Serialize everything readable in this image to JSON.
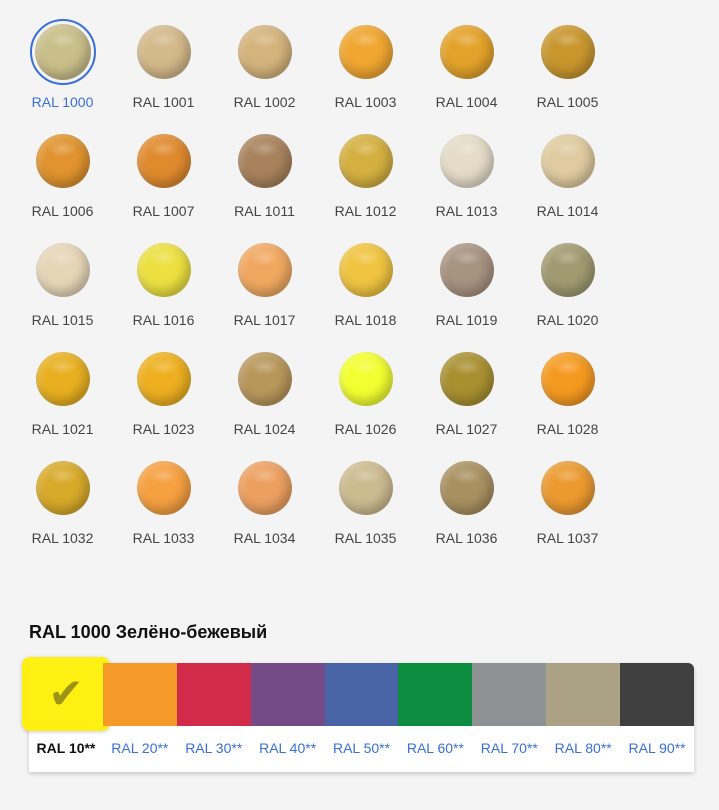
{
  "colors": [
    {
      "label": "RAL 1000",
      "color": "#c9bf8a",
      "selected": true
    },
    {
      "label": "RAL 1001",
      "color": "#d4b98a"
    },
    {
      "label": "RAL 1002",
      "color": "#d4b47c"
    },
    {
      "label": "RAL 1003",
      "color": "#f0a630"
    },
    {
      "label": "RAL 1004",
      "color": "#e3a22a"
    },
    {
      "label": "RAL 1005",
      "color": "#c9962e"
    },
    {
      "label": "RAL 1006",
      "color": "#e0932e"
    },
    {
      "label": "RAL 1007",
      "color": "#e08a2e"
    },
    {
      "label": "RAL 1011",
      "color": "#a8825c"
    },
    {
      "label": "RAL 1012",
      "color": "#d4b040"
    },
    {
      "label": "RAL 1013",
      "color": "#e4dcc8"
    },
    {
      "label": "RAL 1014",
      "color": "#e0cba0"
    },
    {
      "label": "RAL 1015",
      "color": "#e6d6b8"
    },
    {
      "label": "RAL 1016",
      "color": "#ece040"
    },
    {
      "label": "RAL 1017",
      "color": "#f0a860"
    },
    {
      "label": "RAL 1018",
      "color": "#f0c440"
    },
    {
      "label": "RAL 1019",
      "color": "#a89280"
    },
    {
      "label": "RAL 1020",
      "color": "#a09a70"
    },
    {
      "label": "RAL 1021",
      "color": "#e8b020"
    },
    {
      "label": "RAL 1023",
      "color": "#eeb020"
    },
    {
      "label": "RAL 1024",
      "color": "#b8975a"
    },
    {
      "label": "RAL 1026",
      "color": "#f2ff30"
    },
    {
      "label": "RAL 1027",
      "color": "#a89030"
    },
    {
      "label": "RAL 1028",
      "color": "#f59a20"
    },
    {
      "label": "RAL 1032",
      "color": "#d8aa2a"
    },
    {
      "label": "RAL 1033",
      "color": "#f6a040"
    },
    {
      "label": "RAL 1034",
      "color": "#eca060"
    },
    {
      "label": "RAL 1035",
      "color": "#cdbb90"
    },
    {
      "label": "RAL 1036",
      "color": "#a89060"
    },
    {
      "label": "RAL 1037",
      "color": "#eb9a30"
    }
  ],
  "selected_title": "RAL 1000 Зелёно-бежевый",
  "palette": [
    {
      "label": "RAL 10**",
      "color": "#fff014",
      "selected": true
    },
    {
      "label": "RAL 20**",
      "color": "#f59a28"
    },
    {
      "label": "RAL 30**",
      "color": "#d22b4a"
    },
    {
      "label": "RAL 40**",
      "color": "#744b87"
    },
    {
      "label": "RAL 50**",
      "color": "#4864a6"
    },
    {
      "label": "RAL 60**",
      "color": "#0b8c3e"
    },
    {
      "label": "RAL 70**",
      "color": "#8f9293"
    },
    {
      "label": "RAL 80**",
      "color": "#aba184"
    },
    {
      "label": "RAL 90**",
      "color": "#3f3f3f"
    }
  ],
  "check_icon": "✔"
}
